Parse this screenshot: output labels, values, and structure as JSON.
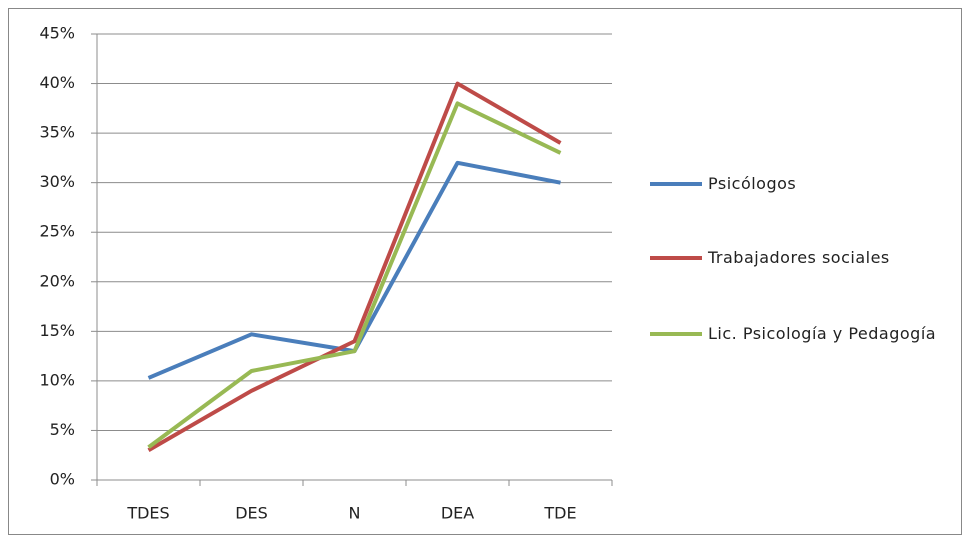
{
  "chart_data": {
    "type": "line",
    "categories": [
      "TDES",
      "DES",
      "N",
      "DEA",
      "TDE"
    ],
    "series": [
      {
        "name": "Psicólogos",
        "color": "#4a7ebb",
        "values": [
          10.3,
          14.7,
          13,
          32,
          30
        ]
      },
      {
        "name": "Trabajadores sociales",
        "color": "#be4b48",
        "values": [
          3,
          9,
          14,
          40,
          34
        ]
      },
      {
        "name": "Lic. Psicología y Pedagogía",
        "color": "#98b954",
        "values": [
          3.3,
          11,
          13,
          38,
          33
        ]
      }
    ],
    "ylim": [
      0,
      45
    ],
    "yticks": [
      {
        "value": 0,
        "label": "0%"
      },
      {
        "value": 5,
        "label": "5%"
      },
      {
        "value": 10,
        "label": "10%"
      },
      {
        "value": 15,
        "label": "15%"
      },
      {
        "value": 20,
        "label": "20%"
      },
      {
        "value": 25,
        "label": "25%"
      },
      {
        "value": 30,
        "label": "30%"
      },
      {
        "value": 35,
        "label": "35%"
      },
      {
        "value": 40,
        "label": "40%"
      },
      {
        "value": 45,
        "label": "45%"
      }
    ],
    "grid": true,
    "legend": "right"
  }
}
